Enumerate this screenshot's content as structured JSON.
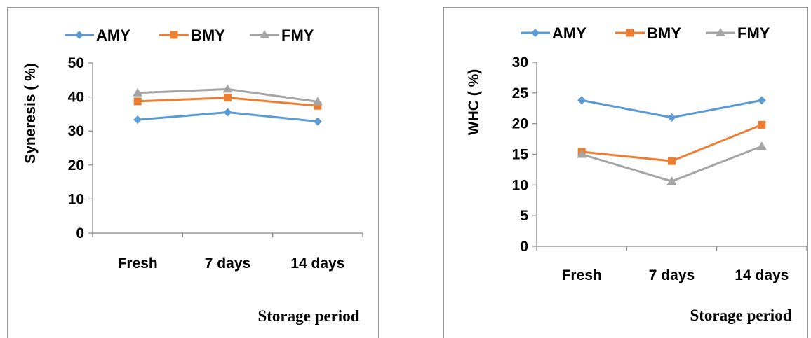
{
  "chart_data": [
    {
      "type": "line",
      "categories": [
        "Fresh",
        "7 days",
        "14 days"
      ],
      "series": [
        {
          "name": "AMY",
          "values": [
            33.3,
            35.5,
            32.8
          ],
          "color": "#5b9bd5",
          "marker": "diamond"
        },
        {
          "name": "BMY",
          "values": [
            38.7,
            39.8,
            37.4
          ],
          "color": "#ed7d31",
          "marker": "square"
        },
        {
          "name": "FMY",
          "values": [
            41.2,
            42.3,
            38.6
          ],
          "color": "#a5a5a5",
          "marker": "triangle"
        }
      ],
      "ylabel": "Syneresis ( %)",
      "xlabel": "Storage period",
      "ylim": [
        0,
        50
      ],
      "yticks": [
        "0",
        "10",
        "20",
        "30",
        "40",
        "50"
      ],
      "grid": false,
      "legend": "top"
    },
    {
      "type": "line",
      "categories": [
        "Fresh",
        "7 days",
        "14 days"
      ],
      "series": [
        {
          "name": "AMY",
          "values": [
            23.8,
            21.0,
            23.8
          ],
          "color": "#5b9bd5",
          "marker": "diamond"
        },
        {
          "name": "BMY",
          "values": [
            15.4,
            13.9,
            19.8
          ],
          "color": "#ed7d31",
          "marker": "square"
        },
        {
          "name": "FMY",
          "values": [
            15.0,
            10.6,
            16.3
          ],
          "color": "#a5a5a5",
          "marker": "triangle"
        }
      ],
      "ylabel": "WHC ( %)",
      "xlabel": "Storage period",
      "ylim": [
        0,
        30
      ],
      "yticks": [
        "0",
        "5",
        "10",
        "15",
        "20",
        "25",
        "30"
      ],
      "grid": false,
      "legend": "top"
    }
  ]
}
